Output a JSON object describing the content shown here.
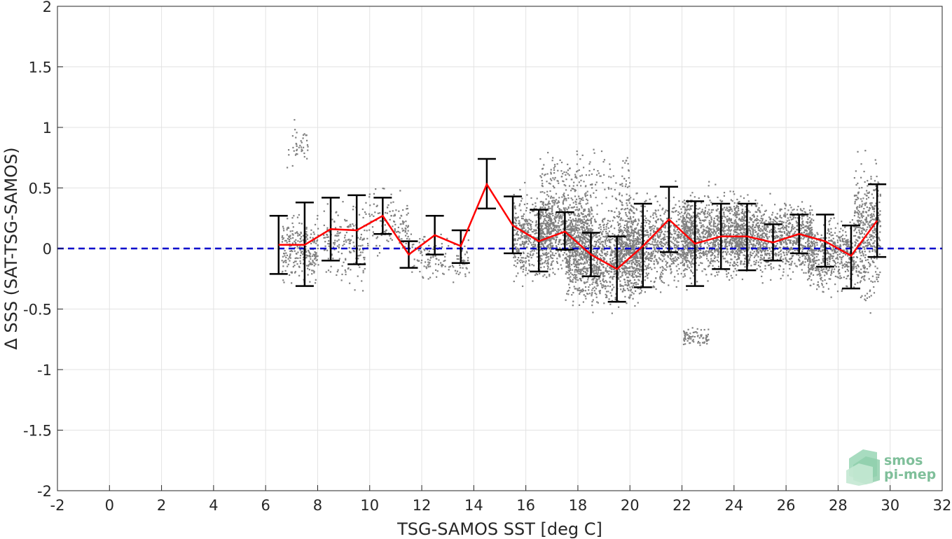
{
  "chart_data": {
    "type": "scatter",
    "xlabel": "TSG-SAMOS SST [deg C]",
    "ylabel": "Δ SSS (SAT-TSG-SAMOS)",
    "xlim": [
      -2,
      32
    ],
    "ylim": [
      -2,
      2
    ],
    "x_ticks": [
      -2,
      0,
      2,
      4,
      6,
      8,
      10,
      12,
      14,
      16,
      18,
      20,
      22,
      24,
      26,
      28,
      30,
      32
    ],
    "y_ticks": [
      -2,
      -1.5,
      -1,
      -0.5,
      0,
      0.5,
      1,
      1.5,
      2
    ],
    "x_tick_labels": [
      "-2",
      "0",
      "2",
      "4",
      "6",
      "8",
      "10",
      "12",
      "14",
      "16",
      "18",
      "20",
      "22",
      "24",
      "26",
      "28",
      "30",
      "32"
    ],
    "y_tick_labels": [
      "-2",
      "-1.5",
      "-1",
      "-0.5",
      "0",
      "0.5",
      "1",
      "1.5",
      "2"
    ],
    "grid": true,
    "colors": {
      "scatter": "#808080",
      "mean_line": "#ff0000",
      "error_bars": "#000000",
      "zero_line": "#0000cc"
    },
    "reference_line": {
      "y": 0,
      "style": "dashed"
    },
    "binned_stats": {
      "x": [
        6.5,
        7.5,
        8.5,
        9.5,
        10.5,
        11.5,
        12.5,
        13.5,
        14.5,
        15.5,
        16.5,
        17.5,
        18.5,
        19.5,
        20.5,
        21.5,
        22.5,
        23.5,
        24.5,
        25.5,
        26.5,
        27.5,
        28.5,
        29.5
      ],
      "mean": [
        0.03,
        0.03,
        0.16,
        0.15,
        0.27,
        -0.05,
        0.11,
        0.02,
        0.53,
        0.19,
        0.06,
        0.14,
        -0.05,
        -0.17,
        0.02,
        0.24,
        0.04,
        0.1,
        0.1,
        0.05,
        0.12,
        0.06,
        -0.06,
        0.23
      ],
      "upper": [
        0.27,
        0.38,
        0.42,
        0.44,
        0.42,
        0.06,
        0.27,
        0.15,
        0.74,
        0.43,
        0.32,
        0.3,
        0.13,
        0.1,
        0.37,
        0.51,
        0.39,
        0.37,
        0.37,
        0.2,
        0.28,
        0.28,
        0.19,
        0.53
      ],
      "lower": [
        -0.21,
        -0.31,
        -0.1,
        -0.13,
        0.12,
        -0.16,
        -0.05,
        -0.12,
        0.33,
        -0.04,
        -0.19,
        -0.01,
        -0.23,
        -0.44,
        -0.32,
        -0.03,
        -0.31,
        -0.17,
        -0.18,
        -0.1,
        -0.04,
        -0.15,
        -0.33,
        -0.07
      ]
    },
    "scatter_clusters": [
      {
        "x0": 6.6,
        "x1": 8.0,
        "y": 0.0,
        "spread": 0.22,
        "n": 260
      },
      {
        "x0": 6.8,
        "x1": 7.6,
        "y": 0.85,
        "spread": 0.15,
        "n": 40
      },
      {
        "x0": 8.2,
        "x1": 9.8,
        "y": 0.05,
        "spread": 0.28,
        "n": 180
      },
      {
        "x0": 9.8,
        "x1": 11.5,
        "y": 0.2,
        "spread": 0.22,
        "n": 140
      },
      {
        "x0": 11.5,
        "x1": 13.8,
        "y": -0.08,
        "spread": 0.15,
        "n": 140
      },
      {
        "x0": 15.5,
        "x1": 17.0,
        "y": 0.1,
        "spread": 0.28,
        "n": 480
      },
      {
        "x0": 16.5,
        "x1": 18.5,
        "y": 0.18,
        "spread": 0.28,
        "n": 700
      },
      {
        "x0": 17.5,
        "x1": 20.5,
        "y": -0.06,
        "spread": 0.32,
        "n": 1300
      },
      {
        "x0": 19.5,
        "x1": 22.5,
        "y": 0.06,
        "spread": 0.3,
        "n": 1000
      },
      {
        "x0": 22.0,
        "x1": 24.5,
        "y": 0.12,
        "spread": 0.28,
        "n": 1000
      },
      {
        "x0": 24.0,
        "x1": 27.0,
        "y": 0.1,
        "spread": 0.24,
        "n": 1100
      },
      {
        "x0": 26.8,
        "x1": 28.6,
        "y": -0.05,
        "spread": 0.24,
        "n": 520
      },
      {
        "x0": 28.6,
        "x1": 29.6,
        "y": 0.15,
        "spread": 0.45,
        "n": 450
      },
      {
        "x0": 22.0,
        "x1": 23.0,
        "y": -0.72,
        "spread": 0.06,
        "n": 80
      },
      {
        "x0": 16.5,
        "x1": 20.0,
        "y": 0.6,
        "spread": 0.2,
        "n": 160
      }
    ]
  },
  "logo": {
    "line1": "smos",
    "line2": "pi-mep"
  }
}
